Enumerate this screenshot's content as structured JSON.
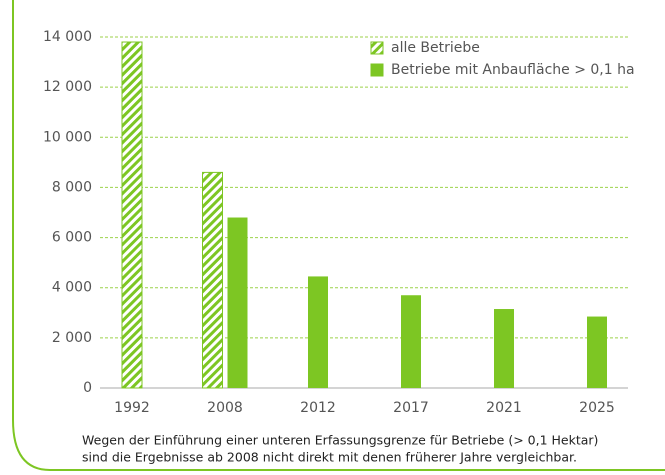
{
  "chart_data": {
    "type": "bar",
    "categories": [
      "1992",
      "2008",
      "2012",
      "2017",
      "2021",
      "2025"
    ],
    "series": [
      {
        "name": "alle Betriebe",
        "color": "#7dc623",
        "pattern": "hatch",
        "values": [
          13800,
          8600,
          null,
          null,
          null,
          null
        ]
      },
      {
        "name": "Betriebe mit Anbaufläche > 0,1 ha",
        "color": "#7dc623",
        "values": [
          null,
          6800,
          4450,
          3700,
          3150,
          2850
        ]
      }
    ],
    "ylim": [
      0,
      14000
    ],
    "yticks": [
      0,
      {
        "value": 2000,
        "label": "2 000"
      },
      {
        "value": 4000,
        "label": "4 000"
      },
      {
        "value": 6000,
        "label": "6 000"
      },
      {
        "value": 8000,
        "label": "8 000"
      },
      {
        "value": 10000,
        "label": "10 000"
      },
      {
        "value": 12000,
        "label": "12 000"
      },
      {
        "value": 14000,
        "label": "14 000"
      }
    ],
    "grid": true,
    "note": [
      "Wegen der Einführung einer unteren Erfassungsgrenze für Betriebe (> 0,1 Hektar)",
      "sind die Ergebnisse ab 2008 nicht direkt mit denen früherer Jahre vergleichbar."
    ]
  }
}
